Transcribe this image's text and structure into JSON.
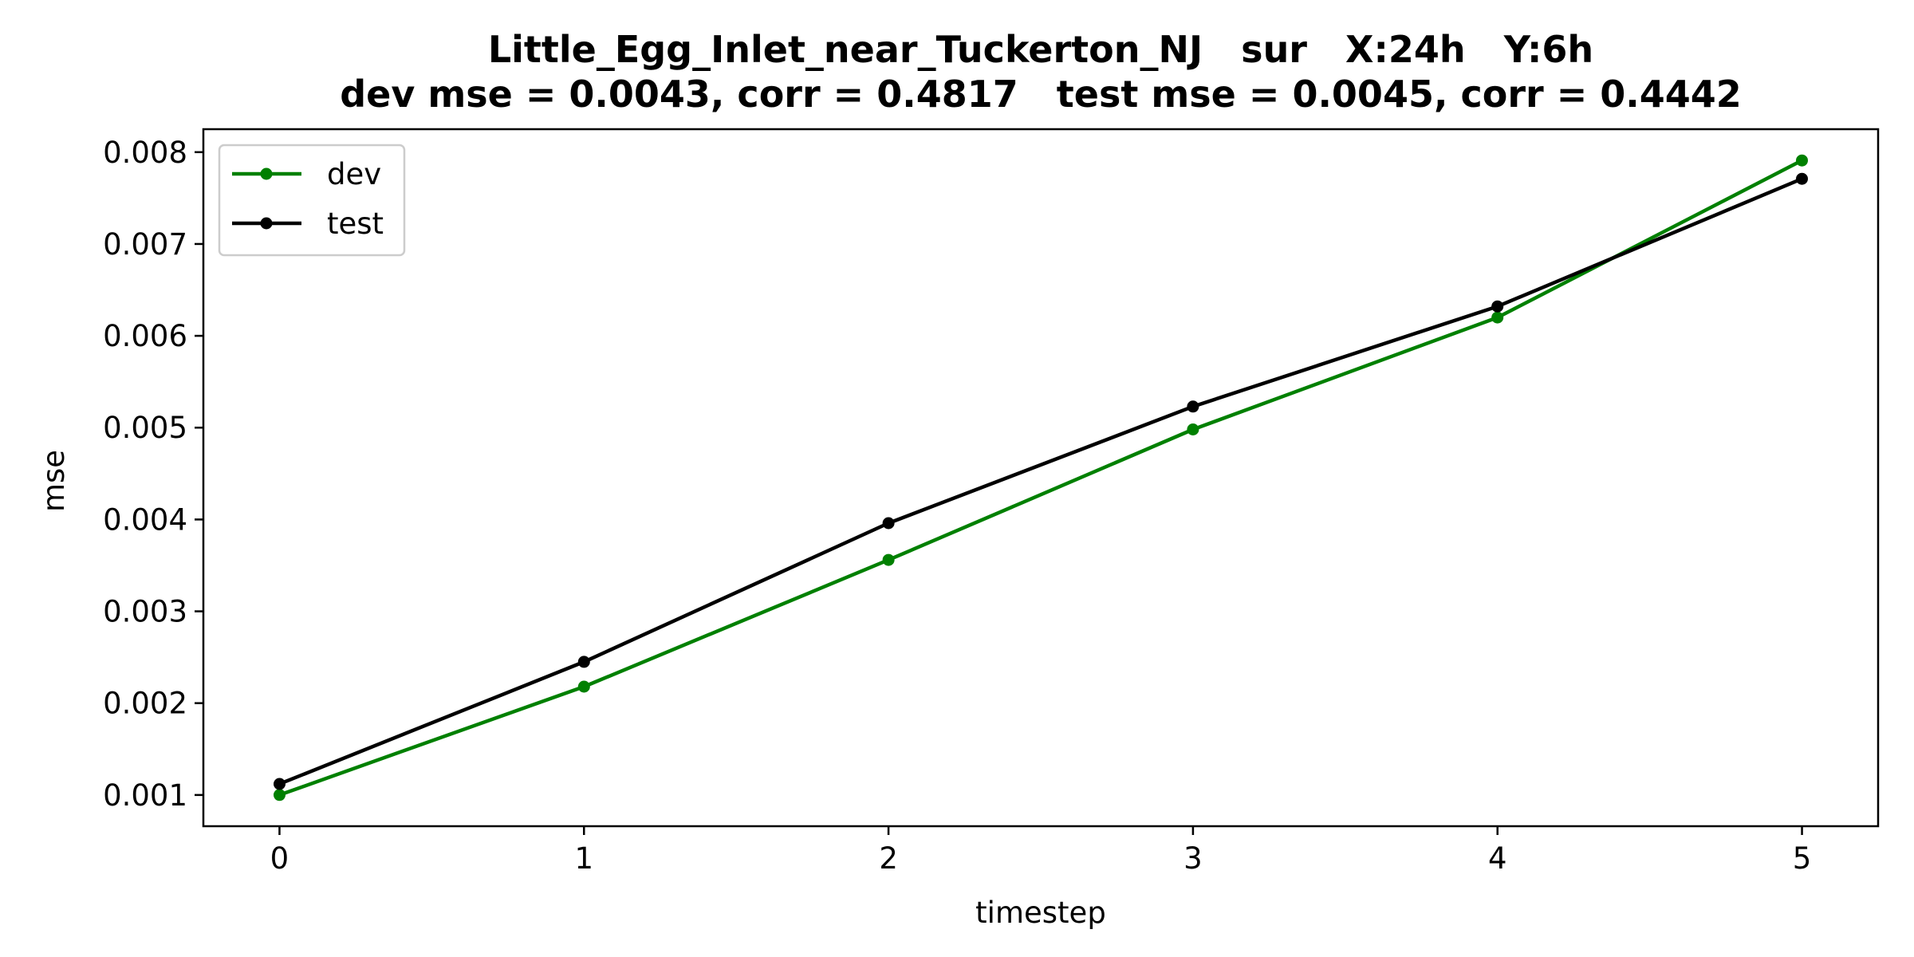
{
  "chart_data": {
    "type": "line",
    "title": "Little_Egg_Inlet_near_Tuckerton_NJ   sur   X:24h   Y:6h",
    "subtitle": "dev mse = 0.0043, corr = 0.4817   test mse = 0.0045, corr = 0.4442",
    "xlabel": "timestep",
    "ylabel": "mse",
    "x": [
      0,
      1,
      2,
      3,
      4,
      5
    ],
    "xticks": [
      "0",
      "1",
      "2",
      "3",
      "4",
      "5"
    ],
    "yticks": [
      "0.001",
      "0.002",
      "0.003",
      "0.004",
      "0.005",
      "0.006",
      "0.007",
      "0.008"
    ],
    "xlim": [
      -0.25,
      5.25
    ],
    "ylim": [
      0.00066,
      0.00825
    ],
    "grid": false,
    "legend_position": "top-left",
    "series": [
      {
        "name": "dev",
        "color": "#008000",
        "values": [
          0.001,
          0.00218,
          0.00356,
          0.00498,
          0.0062,
          0.00791
        ]
      },
      {
        "name": "test",
        "color": "#000000",
        "values": [
          0.00112,
          0.00245,
          0.00396,
          0.00523,
          0.00632,
          0.00771
        ]
      }
    ]
  }
}
